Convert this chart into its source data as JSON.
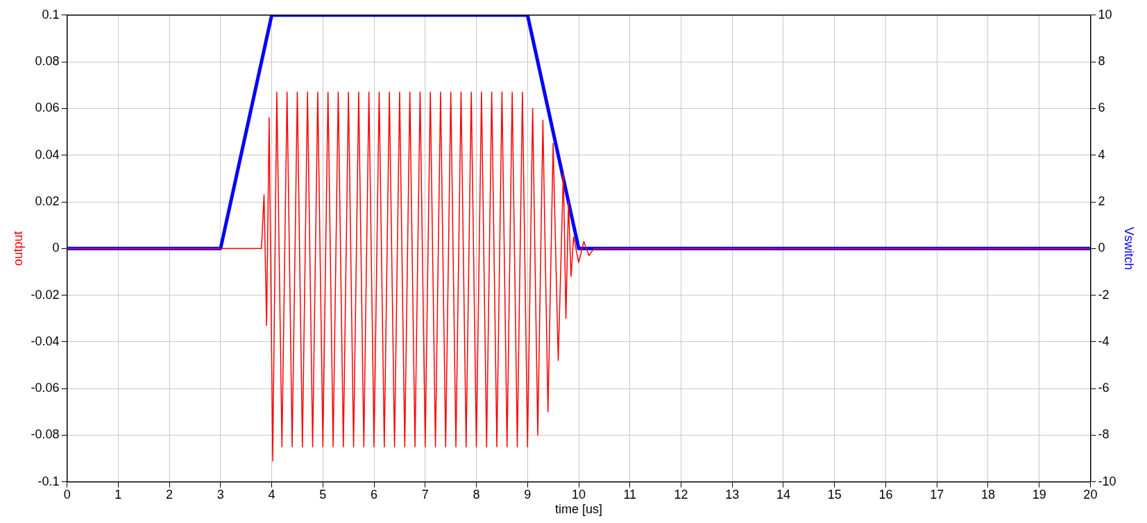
{
  "chart_data": {
    "type": "line",
    "xlabel": "time [us]",
    "ylabel": "output",
    "y2label": "Vswitch",
    "xlim": [
      0,
      20
    ],
    "xticks": [
      0,
      1,
      2,
      3,
      4,
      5,
      6,
      7,
      8,
      9,
      10,
      11,
      12,
      13,
      14,
      15,
      16,
      17,
      18,
      19,
      20
    ],
    "ylim": [
      -0.1,
      0.1
    ],
    "yticks": [
      -0.1,
      -0.08,
      -0.06,
      -0.04,
      -0.02,
      0,
      0.02,
      0.04,
      0.06,
      0.08,
      0.1
    ],
    "y2lim": [
      -10,
      10
    ],
    "y2ticks": [
      -10,
      -8,
      -6,
      -4,
      -2,
      0,
      2,
      4,
      6,
      8,
      10
    ],
    "grid": true,
    "legend": false,
    "marker": "none",
    "line_style": "solid",
    "series": [
      {
        "color": "#ff0000",
        "x": [
          0,
          3,
          3.8,
          3.85,
          3.9,
          3.95,
          4.02,
          4.1,
          4.2,
          4.3,
          4.4,
          4.5,
          4.6,
          4.7,
          4.8,
          4.9,
          5.0,
          5.1,
          5.2,
          5.3,
          5.4,
          5.5,
          5.6,
          5.7,
          5.8,
          5.9,
          6.0,
          6.1,
          6.2,
          6.3,
          6.4,
          6.5,
          6.6,
          6.7,
          6.8,
          6.9,
          7.0,
          7.1,
          7.2,
          7.3,
          7.4,
          7.5,
          7.6,
          7.7,
          7.8,
          7.9,
          8.0,
          8.1,
          8.2,
          8.3,
          8.4,
          8.5,
          8.6,
          8.7,
          8.8,
          8.9,
          9.0,
          9.1,
          9.2,
          9.3,
          9.4,
          9.5,
          9.6,
          9.7,
          9.75,
          9.8,
          9.85,
          9.9,
          10.0,
          10.1,
          10.2,
          10.3,
          20
        ],
        "values": [
          0,
          0,
          0,
          0.023,
          -0.033,
          0.056,
          -0.091,
          0.067,
          -0.085,
          0.067,
          -0.085,
          0.067,
          -0.085,
          0.067,
          -0.085,
          0.067,
          -0.085,
          0.067,
          -0.085,
          0.067,
          -0.085,
          0.067,
          -0.085,
          0.067,
          -0.085,
          0.067,
          -0.085,
          0.067,
          -0.085,
          0.067,
          -0.085,
          0.067,
          -0.085,
          0.067,
          -0.085,
          0.067,
          -0.085,
          0.067,
          -0.085,
          0.067,
          -0.085,
          0.067,
          -0.085,
          0.067,
          -0.085,
          0.067,
          -0.085,
          0.067,
          -0.085,
          0.067,
          -0.085,
          0.067,
          -0.085,
          0.067,
          -0.085,
          0.067,
          -0.085,
          0.06,
          -0.08,
          0.055,
          -0.07,
          0.045,
          -0.048,
          0.033,
          -0.03,
          0.02,
          -0.012,
          0.005,
          -0.006,
          0.003,
          -0.003,
          0,
          0
        ]
      },
      {
        "color": "#0000ff",
        "axis": "y2",
        "x": [
          0,
          3,
          4,
          9,
          10,
          20
        ],
        "values": [
          0,
          0,
          10,
          10,
          0,
          0
        ]
      }
    ]
  }
}
